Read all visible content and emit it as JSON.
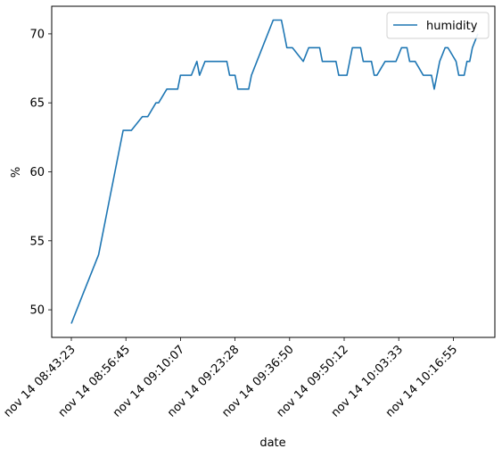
{
  "chart_data": {
    "type": "line",
    "xlabel": "date",
    "ylabel": "%",
    "x_ticks": [
      "nov 14 08:43:23",
      "nov 14 08:56:45",
      "nov 14 09:10:07",
      "nov 14 09:23:28",
      "nov 14 09:36:50",
      "nov 14 09:50:12",
      "nov 14 10:03:33",
      "nov 14 10:16:55"
    ],
    "y_ticks": [
      50,
      55,
      60,
      65,
      70
    ],
    "ylim": [
      48.0,
      72.0
    ],
    "grid": false,
    "legend_position": "top-right",
    "colors": {
      "series": "#1f77b4"
    },
    "series": [
      {
        "name": "humidity",
        "x_tick_index": [
          0,
          0.2,
          0.4,
          0.5,
          0.6,
          0.7,
          0.95,
          1.1,
          1.3,
          1.4,
          1.55,
          1.6,
          1.75,
          1.8,
          1.95,
          2.0,
          2.1,
          2.2,
          2.3,
          2.35,
          2.45,
          2.55,
          2.6,
          2.7,
          2.85,
          2.9,
          3.0,
          3.05,
          3.1,
          3.15,
          3.25,
          3.3,
          3.4,
          3.6,
          3.7,
          3.75,
          3.85,
          3.9,
          3.95,
          4.05,
          4.25,
          4.35,
          4.4,
          4.5,
          4.55,
          4.6,
          4.7,
          4.8,
          4.85,
          4.9,
          5.0,
          5.05,
          5.15,
          5.2,
          5.3,
          5.35,
          5.4,
          5.5,
          5.55,
          5.6,
          5.75,
          5.95,
          6.05,
          6.1,
          6.15,
          6.2,
          6.3,
          6.45,
          6.5,
          6.55,
          6.6,
          6.65,
          6.75,
          6.85,
          6.9,
          7.05,
          7.1,
          7.2,
          7.25,
          7.3,
          7.35,
          7.45
        ],
        "values": [
          49,
          51,
          53,
          54,
          56,
          58,
          63,
          63,
          64,
          64,
          65,
          65,
          66,
          66,
          66,
          67,
          67,
          67,
          68,
          67,
          68,
          68,
          68,
          68,
          68,
          67,
          67,
          66,
          66,
          66,
          66,
          67,
          68,
          70,
          71,
          71,
          71,
          70,
          69,
          69,
          68,
          69,
          69,
          69,
          69,
          68,
          68,
          68,
          68,
          67,
          67,
          67,
          69,
          69,
          69,
          68,
          68,
          68,
          67,
          67,
          68,
          68,
          69,
          69,
          69,
          68,
          68,
          67,
          67,
          67,
          67,
          66,
          68,
          69,
          69,
          68,
          67,
          67,
          68,
          68,
          69,
          70
        ]
      }
    ]
  }
}
